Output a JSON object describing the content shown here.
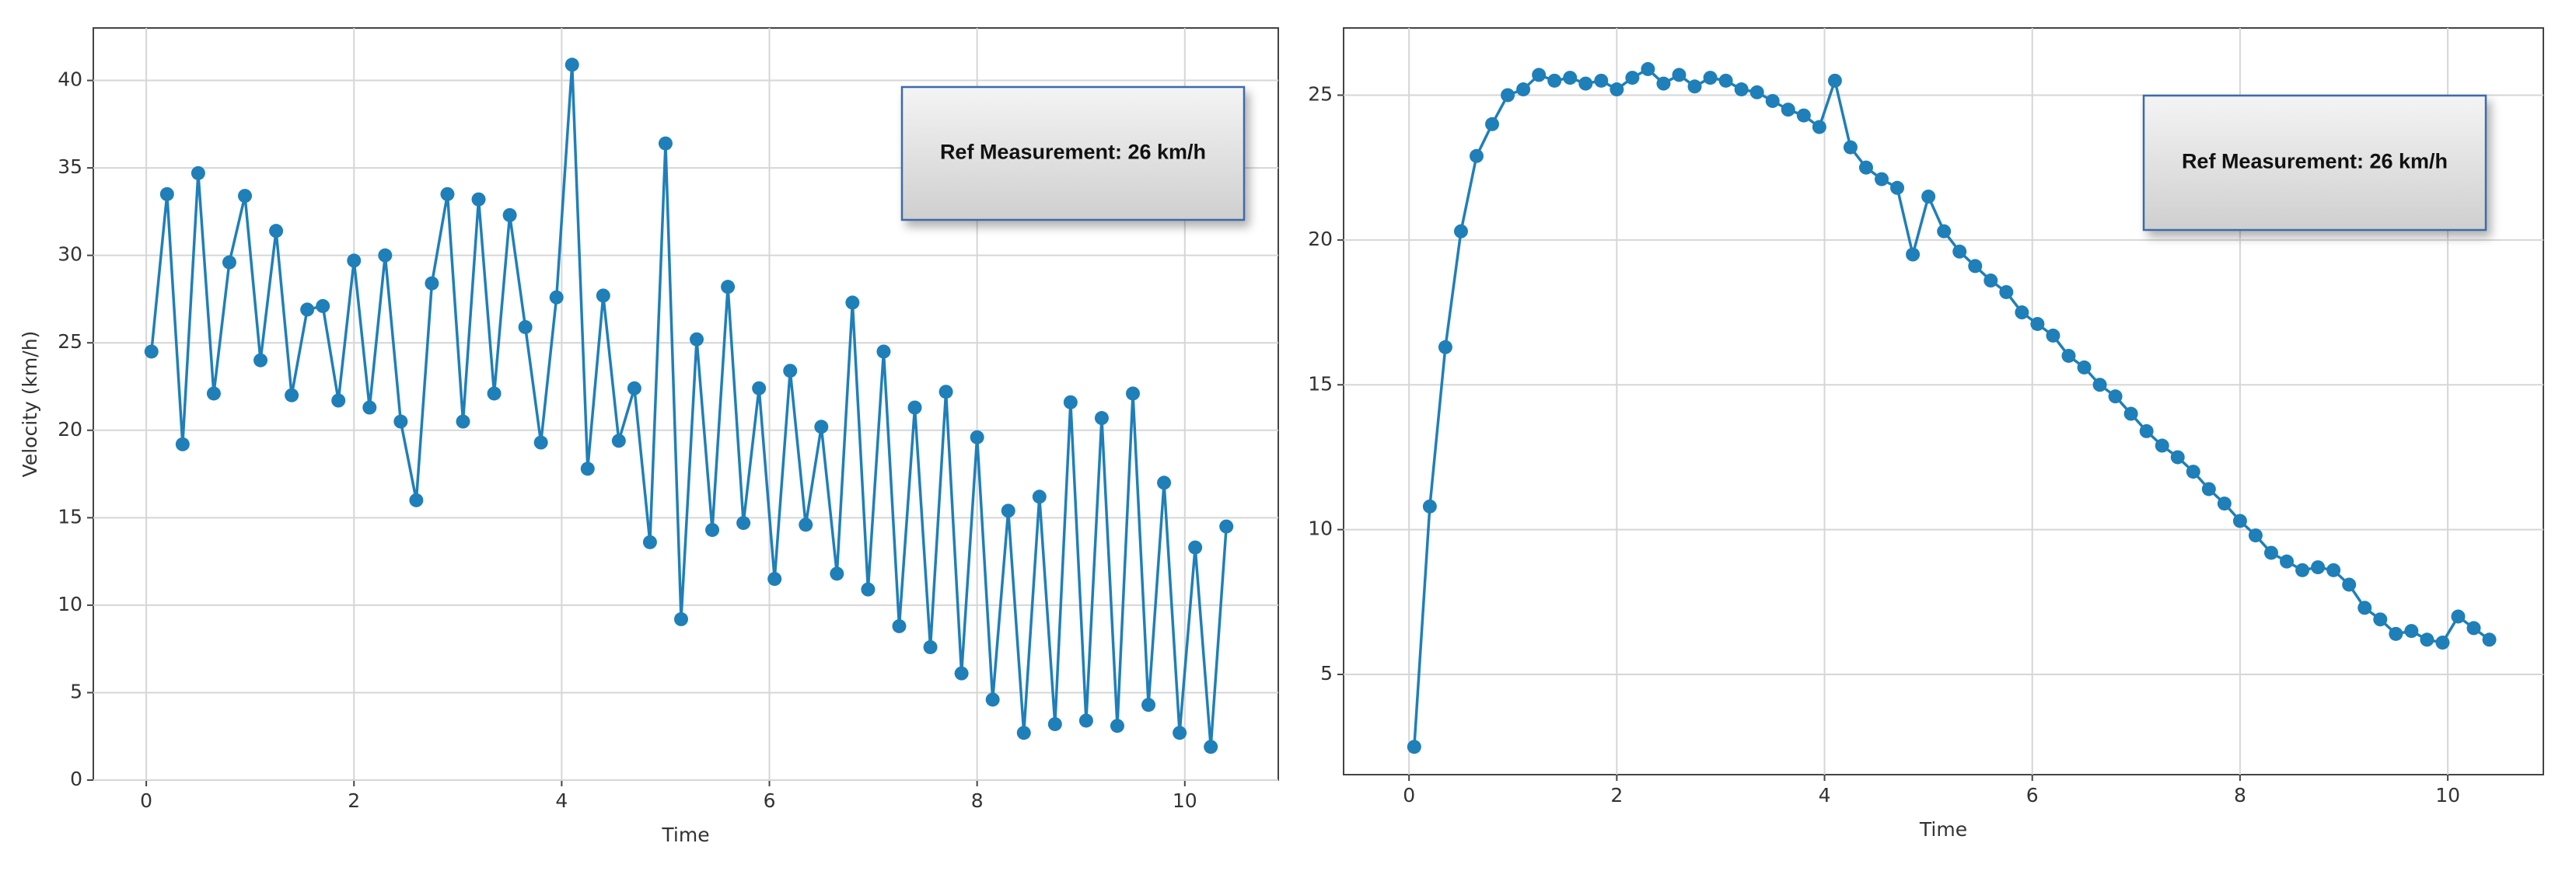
{
  "chart_data": [
    {
      "type": "line",
      "xlabel": "Time",
      "ylabel": "Velocity (km/h)",
      "annotation": "Ref Measurement: 26 km/h",
      "x": [
        0.05,
        0.2,
        0.35,
        0.5,
        0.65,
        0.8,
        0.95,
        1.1,
        1.25,
        1.4,
        1.55,
        1.7,
        1.85,
        2,
        2.15,
        2.3,
        2.45,
        2.6,
        2.75,
        2.9,
        3.05,
        3.2,
        3.35,
        3.5,
        3.65,
        3.8,
        3.95,
        4.1,
        4.25,
        4.4,
        4.55,
        4.7,
        4.85,
        5,
        5.15,
        5.3,
        5.45,
        5.6,
        5.75,
        5.9,
        6.05,
        6.2,
        6.35,
        6.5,
        6.65,
        6.8,
        6.95,
        7.1,
        7.25,
        7.4,
        7.55,
        7.7,
        7.85,
        8,
        8.15,
        8.3,
        8.45,
        8.6,
        8.75,
        8.9,
        9.05,
        9.2,
        9.35,
        9.5,
        9.65,
        9.8,
        9.95,
        10.1,
        10.25,
        10.4
      ],
      "values": [
        24.5,
        33.5,
        19.2,
        34.7,
        22.1,
        29.6,
        33.4,
        24,
        31.4,
        22,
        26.9,
        27.1,
        21.7,
        29.7,
        21.3,
        30,
        20.5,
        16,
        28.4,
        33.5,
        20.5,
        33.2,
        22.1,
        32.3,
        25.9,
        19.3,
        27.6,
        40.9,
        17.8,
        27.7,
        19.4,
        22.4,
        13.6,
        36.4,
        9.2,
        25.2,
        14.3,
        28.2,
        14.7,
        22.4,
        11.5,
        23.4,
        14.6,
        20.2,
        11.8,
        27.3,
        10.9,
        24.5,
        8.8,
        21.3,
        7.6,
        22.2,
        6.1,
        19.6,
        4.6,
        15.4,
        2.7,
        16.2,
        3.2,
        21.6,
        3.4,
        20.7,
        3.1,
        22.1,
        4.3,
        17,
        2.7,
        13.3,
        1.9,
        14.5
      ],
      "color": "#1f7fb8",
      "xlim": [
        -0.51,
        10.9
      ],
      "ylim": [
        0,
        43
      ],
      "xticks": [
        0,
        2,
        4,
        6,
        8,
        10
      ],
      "yticks": [
        0,
        5,
        10,
        15,
        20,
        25,
        30,
        35,
        40
      ],
      "grid": true
    },
    {
      "type": "line",
      "xlabel": "Time",
      "annotation": "Ref Measurement: 26 km/h",
      "x": [
        0.05,
        0.2,
        0.35,
        0.5,
        0.65,
        0.8,
        0.95,
        1.1,
        1.25,
        1.4,
        1.55,
        1.7,
        1.85,
        2,
        2.15,
        2.3,
        2.45,
        2.6,
        2.75,
        2.9,
        3.05,
        3.2,
        3.35,
        3.5,
        3.65,
        3.8,
        3.95,
        4.1,
        4.25,
        4.4,
        4.55,
        4.7,
        4.85,
        5,
        5.15,
        5.3,
        5.45,
        5.6,
        5.75,
        5.9,
        6.05,
        6.2,
        6.35,
        6.5,
        6.65,
        6.8,
        6.95,
        7.1,
        7.25,
        7.4,
        7.55,
        7.7,
        7.85,
        8,
        8.15,
        8.3,
        8.45,
        8.6,
        8.75,
        8.9,
        9.05,
        9.2,
        9.35,
        9.5,
        9.65,
        9.8,
        9.95,
        10.1,
        10.25,
        10.4
      ],
      "values": [
        2.5,
        10.8,
        16.3,
        20.3,
        22.9,
        24,
        25,
        25.2,
        25.7,
        25.5,
        25.6,
        25.4,
        25.5,
        25.2,
        25.6,
        25.9,
        25.4,
        25.7,
        25.3,
        25.6,
        25.5,
        25.2,
        25.1,
        24.8,
        24.5,
        24.3,
        23.9,
        25.5,
        23.2,
        22.5,
        22.1,
        21.8,
        19.5,
        21.5,
        20.3,
        19.6,
        19.1,
        18.6,
        18.2,
        17.5,
        17.1,
        16.7,
        16,
        15.6,
        15,
        14.6,
        14,
        13.4,
        12.9,
        12.5,
        12,
        11.4,
        10.9,
        10.3,
        9.8,
        9.2,
        8.9,
        8.6,
        8.7,
        8.6,
        8.1,
        7.3,
        6.9,
        6.4,
        6.5,
        6.2,
        6.1,
        7,
        6.6,
        6.2
      ],
      "color": "#1f7fb8",
      "xlim": [
        -0.63,
        10.92
      ],
      "ylim": [
        1.54,
        27.32
      ],
      "xticks": [
        0,
        2,
        4,
        6,
        8,
        10
      ],
      "yticks": [
        5,
        10,
        15,
        20,
        25
      ],
      "grid": true
    }
  ]
}
